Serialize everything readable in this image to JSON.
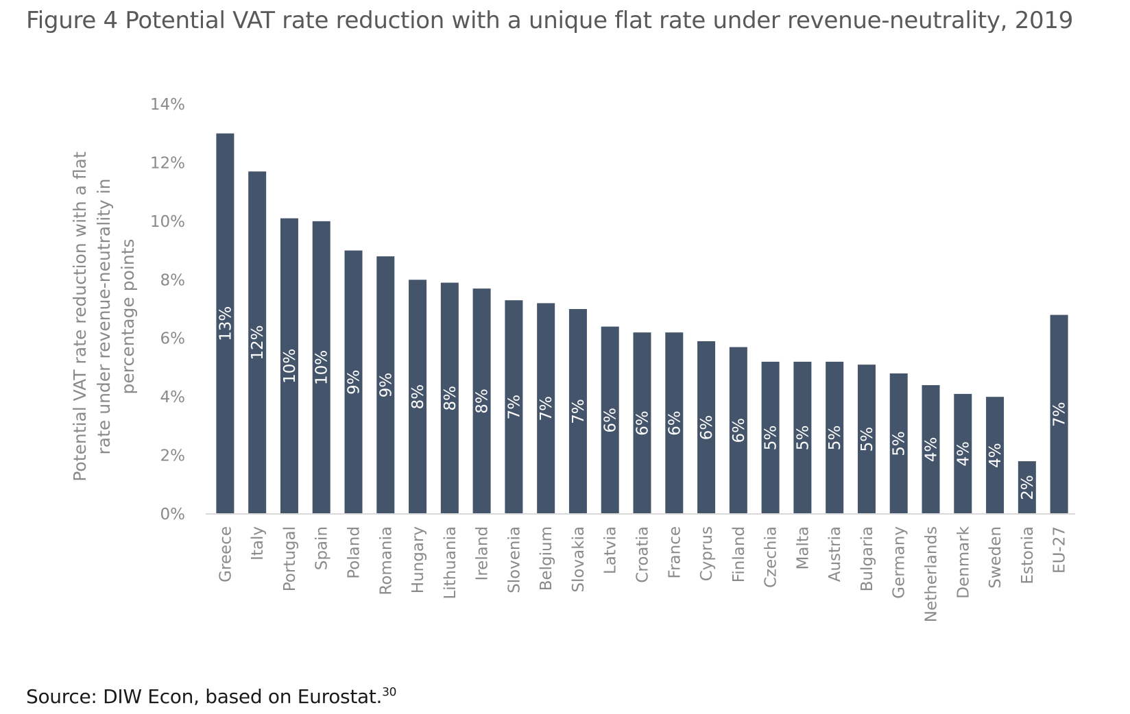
{
  "title": "Figure 4 Potential VAT rate reduction with a unique flat rate under revenue-neutrality, 2019",
  "source": {
    "text": "Source: DIW Econ, based on Eurostat.",
    "footnote": "30"
  },
  "colors": {
    "bar": "#44546a",
    "axis": "#d9d9d9",
    "text": "#8a8a8a"
  },
  "chart_data": {
    "type": "bar",
    "title": "Figure 4 Potential VAT rate reduction with a unique flat rate under revenue-neutrality, 2019",
    "xlabel": "",
    "ylabel_lines": [
      "Potential VAT rate reduction with a flat",
      "rate under revenue-neutrality in",
      "percentage points"
    ],
    "ylim": [
      0,
      14
    ],
    "yticks": [
      0,
      2,
      4,
      6,
      8,
      10,
      12,
      14
    ],
    "ytick_labels": [
      "0%",
      "2%",
      "4%",
      "6%",
      "8%",
      "10%",
      "12%",
      "14%"
    ],
    "grid": false,
    "categories": [
      "Greece",
      "Italy",
      "Portugal",
      "Spain",
      "Poland",
      "Romania",
      "Hungary",
      "Lithuania",
      "Ireland",
      "Slovenia",
      "Belgium",
      "Slovakia",
      "Latvia",
      "Croatia",
      "France",
      "Cyprus",
      "Finland",
      "Czechia",
      "Malta",
      "Austria",
      "Bulgaria",
      "Germany",
      "Netherlands",
      "Denmark",
      "Sweden",
      "Estonia",
      "EU-27"
    ],
    "values": [
      13.0,
      11.7,
      10.1,
      10.0,
      9.0,
      8.8,
      8.0,
      7.9,
      7.7,
      7.3,
      7.2,
      7.0,
      6.4,
      6.2,
      6.2,
      5.9,
      5.7,
      5.2,
      5.2,
      5.2,
      5.1,
      4.8,
      4.4,
      4.1,
      4.0,
      1.8,
      6.8
    ],
    "data_labels": [
      "13%",
      "12%",
      "10%",
      "10%",
      "9%",
      "9%",
      "8%",
      "8%",
      "8%",
      "7%",
      "7%",
      "7%",
      "6%",
      "6%",
      "6%",
      "6%",
      "6%",
      "5%",
      "5%",
      "5%",
      "5%",
      "5%",
      "4%",
      "4%",
      "4%",
      "2%",
      "7%"
    ]
  }
}
